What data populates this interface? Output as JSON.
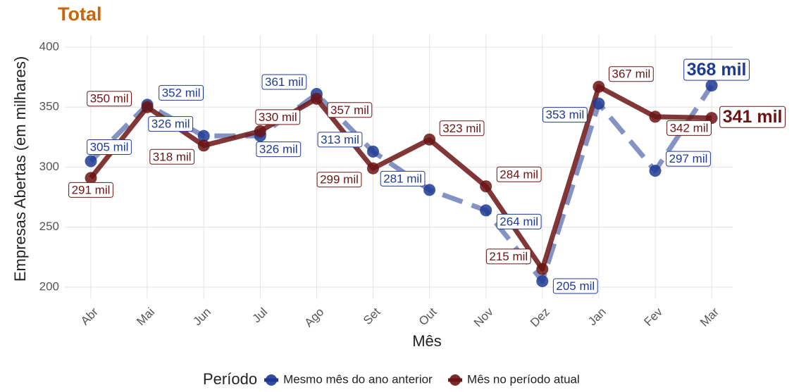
{
  "chart_data": {
    "type": "line",
    "title": "Total",
    "x_label": "Mês",
    "y_label": "Empresas Abertas (em milhares)",
    "legend_title": "Período",
    "categories": [
      "Abr",
      "Mai",
      "Jun",
      "Jul",
      "Ago",
      "Set",
      "Out",
      "Nov",
      "Dez",
      "Jan",
      "Fev",
      "Mar"
    ],
    "series": [
      {
        "name": "Mesmo mês do ano anterior",
        "color": "#1f3a93",
        "dashed": true,
        "values": [
          305,
          352,
          326,
          326,
          361,
          313,
          281,
          264,
          205,
          353,
          297,
          368
        ],
        "value_labels": [
          "305 mil",
          "352 mil",
          "326 mil",
          "326 mil",
          "361 mil",
          "313 mil",
          "281 mil",
          "264 mil",
          "205 mil",
          "353 mil",
          "297 mil",
          "368 mil"
        ]
      },
      {
        "name": "Mês no período atual",
        "color": "#6b1414",
        "dashed": false,
        "values": [
          291,
          350,
          318,
          330,
          357,
          299,
          323,
          284,
          215,
          367,
          342,
          341
        ],
        "value_labels": [
          "291 mil",
          "350 mil",
          "318 mil",
          "330 mil",
          "357 mil",
          "299 mil",
          "323 mil",
          "284 mil",
          "215 mil",
          "367 mil",
          "342 mil",
          "341 mil"
        ]
      }
    ],
    "ylim": [
      190,
      410
    ],
    "yticks": [
      200,
      250,
      300,
      350,
      400
    ],
    "grid": true,
    "legend": "bottom"
  }
}
